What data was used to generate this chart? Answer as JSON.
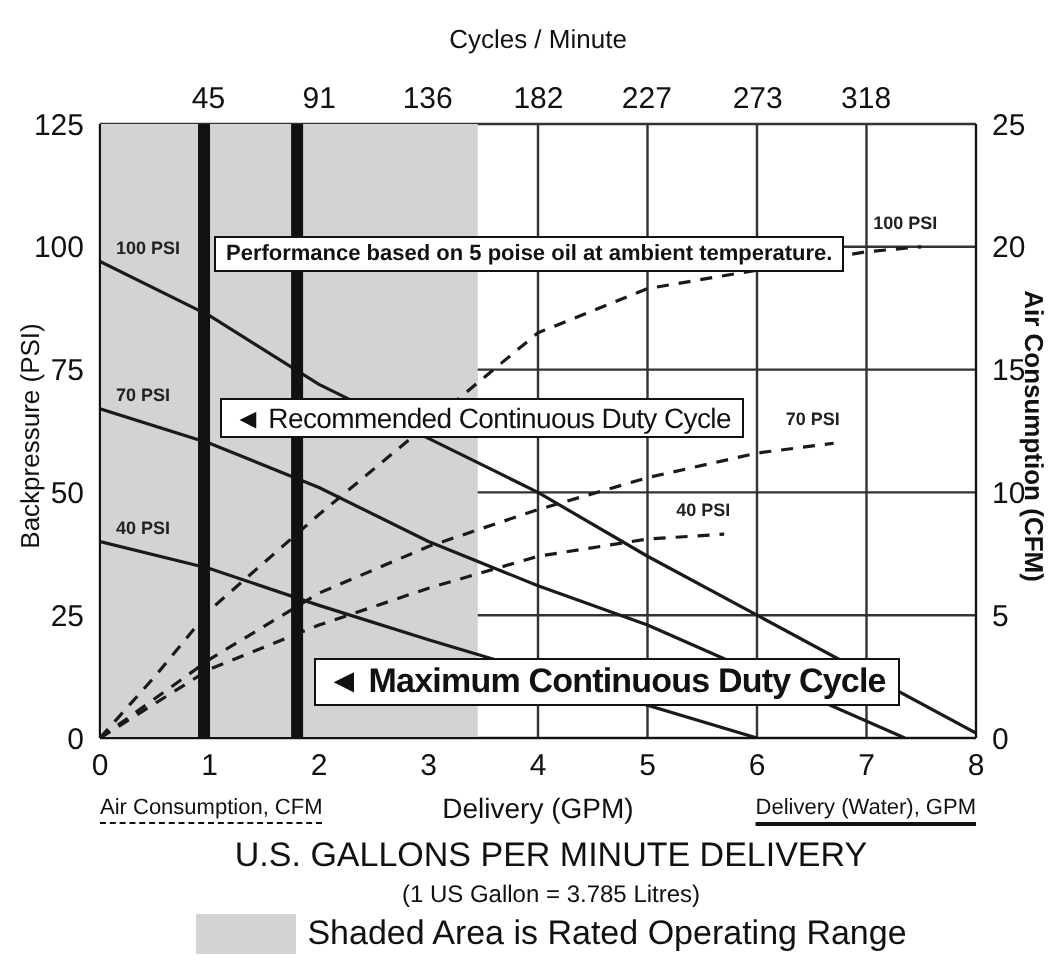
{
  "chart_data": {
    "type": "line",
    "xlabel": "Delivery (GPM)",
    "ylabel": "Backpressure (PSI)",
    "y2label": "Air Consumption (CFM)",
    "x2label": "Cycles / Minute",
    "xlim": [
      0,
      8
    ],
    "xticks": [
      0,
      1,
      2,
      3,
      4,
      5,
      6,
      7,
      8
    ],
    "ylim": [
      0,
      125
    ],
    "yticks": [
      0,
      25,
      50,
      75,
      100,
      125
    ],
    "y2lim": [
      0,
      25
    ],
    "y2ticks": [
      0,
      5,
      10,
      15,
      20,
      25
    ],
    "x2lim": [
      0,
      363.6
    ],
    "x2ticks": [
      45,
      91,
      136,
      182,
      227,
      273,
      318
    ],
    "grid": true,
    "legend": "bottom",
    "marker": "none",
    "series": [
      {
        "name": "100 PSI",
        "color": "#1a1a1a",
        "axis": "y",
        "line_style": "solid",
        "x": [
          0,
          1,
          2,
          3,
          4,
          5,
          6,
          8
        ],
        "values": [
          97,
          86,
          72,
          61,
          50,
          37,
          25,
          1
        ]
      },
      {
        "name": "70 PSI",
        "color": "#1a1a1a",
        "axis": "y",
        "line_style": "solid",
        "x": [
          0,
          1,
          2,
          3,
          4,
          5,
          7.35
        ],
        "values": [
          67,
          60,
          51,
          40,
          31,
          23,
          0
        ]
      },
      {
        "name": "40 PSI",
        "color": "#1a1a1a",
        "axis": "y",
        "line_style": "solid",
        "x": [
          0,
          1,
          2,
          3,
          6
        ],
        "values": [
          40,
          34.5,
          27,
          20,
          0
        ]
      },
      {
        "name": "100 PSI",
        "color": "#1a1a1a",
        "axis": "y2",
        "line_style": "dashed",
        "x": [
          0,
          0.5,
          1,
          2,
          4,
          5,
          7,
          7.5
        ],
        "values": [
          0,
          2.5,
          5.2,
          9.1,
          16.5,
          18.3,
          19.8,
          20
        ]
      },
      {
        "name": "70 PSI",
        "color": "#1a1a1a",
        "axis": "y2",
        "line_style": "dashed",
        "x": [
          0,
          1,
          2,
          3,
          4,
          5,
          6,
          6.7
        ],
        "values": [
          0,
          3.2,
          5.9,
          7.8,
          9.3,
          10.6,
          11.6,
          12
        ]
      },
      {
        "name": "40 PSI",
        "color": "#1a1a1a",
        "axis": "y2",
        "line_style": "dashed",
        "x": [
          0,
          1,
          2,
          3,
          4,
          5,
          5.7
        ],
        "values": [
          0,
          2.8,
          4.6,
          6.1,
          7.4,
          8.1,
          8.3
        ]
      }
    ],
    "ref_lines": [
      {
        "axis": "x",
        "value": 0.95,
        "label": "◄ Recommended Continuous Duty Cycle",
        "color": "#111111"
      },
      {
        "axis": "x",
        "value": 1.8,
        "label": "◄ Maximum Continuous Duty Cycle",
        "color": "#111111"
      }
    ],
    "bands": [
      {
        "axis": "x",
        "from": 0,
        "to": 3.45,
        "label": "Shaded Area is Rated Operating Range",
        "color": "#d3d3d5"
      }
    ],
    "annotations": [
      "Performance based on 5 poise oil at ambient temperature.",
      "Air Consumption, CFM",
      "Delivery (Water), GPM",
      "U.S. GALLONS PER MINUTE DELIVERY",
      "(1 US Gallon = 3.785 Litres)"
    ]
  }
}
